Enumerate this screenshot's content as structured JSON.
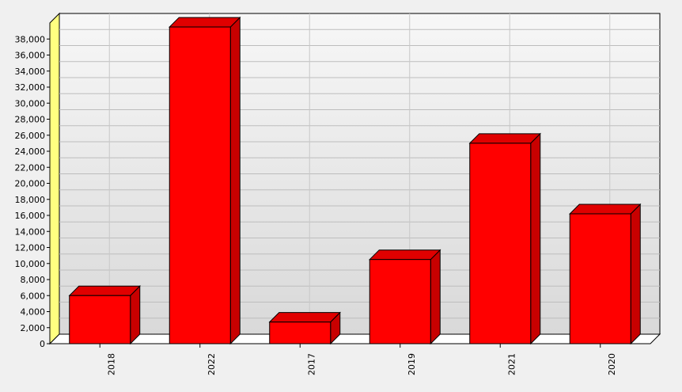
{
  "chart_data": {
    "type": "bar",
    "title": "",
    "xlabel": "",
    "ylabel": "",
    "categories": [
      "2018",
      "2022",
      "2017",
      "2019",
      "2021",
      "2020"
    ],
    "values": [
      6000,
      39500,
      2700,
      10500,
      25000,
      16200
    ],
    "ylim": [
      0,
      40000
    ],
    "y_ticks": [
      "0",
      "2,000",
      "4,000",
      "6,000",
      "8,000",
      "10,000",
      "12,000",
      "14,000",
      "16,000",
      "18,000",
      "20,000",
      "22,000",
      "24,000",
      "26,000",
      "28,000",
      "30,000",
      "32,000",
      "34,000",
      "36,000",
      "38,000"
    ],
    "grid": true,
    "style": "3d",
    "bar_color": "#ff0000",
    "bar_side_color": "#c80000",
    "bar_top_color": "#e00000",
    "wall_color_top": "#f7f7f7",
    "wall_color_bottom": "#d9d9d9",
    "axis_wall_color": "#ffff80"
  }
}
